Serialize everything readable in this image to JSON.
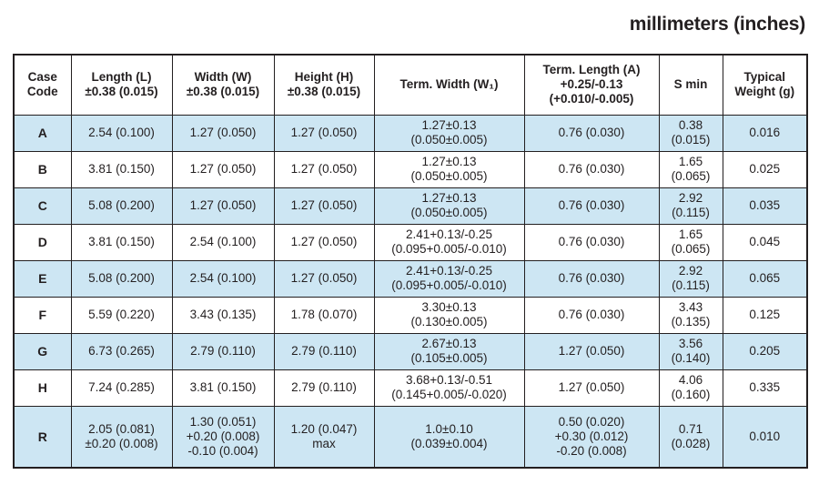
{
  "title": "millimeters (inches)",
  "colors": {
    "shaded_row": "#cde6f3",
    "border": "#231f20",
    "text": "#231f20",
    "background": "#ffffff"
  },
  "table": {
    "headers": [
      {
        "lines": [
          "Case",
          "Code"
        ]
      },
      {
        "lines": [
          "Length (L)",
          "±0.38 (0.015)"
        ]
      },
      {
        "lines": [
          "Width (W)",
          "±0.38 (0.015)"
        ]
      },
      {
        "lines": [
          "Height (H)",
          "±0.38 (0.015)"
        ]
      },
      {
        "lines": [
          "Term. Width (W₁)"
        ]
      },
      {
        "lines": [
          "Term. Length (A)",
          "+0.25/-0.13",
          "(+0.010/-0.005)"
        ]
      },
      {
        "lines": [
          "S min"
        ]
      },
      {
        "lines": [
          "Typical",
          "Weight (g)"
        ]
      }
    ],
    "rows": [
      {
        "case": "A",
        "shaded": true,
        "tall": false,
        "cells": [
          [
            "2.54 (0.100)"
          ],
          [
            "1.27 (0.050)"
          ],
          [
            "1.27 (0.050)"
          ],
          [
            "1.27±0.13",
            "(0.050±0.005)"
          ],
          [
            "0.76 (0.030)"
          ],
          [
            "0.38",
            "(0.015)"
          ],
          [
            "0.016"
          ]
        ]
      },
      {
        "case": "B",
        "shaded": false,
        "tall": false,
        "cells": [
          [
            "3.81 (0.150)"
          ],
          [
            "1.27 (0.050)"
          ],
          [
            "1.27 (0.050)"
          ],
          [
            "1.27±0.13",
            "(0.050±0.005)"
          ],
          [
            "0.76 (0.030)"
          ],
          [
            "1.65",
            "(0.065)"
          ],
          [
            "0.025"
          ]
        ]
      },
      {
        "case": "C",
        "shaded": true,
        "tall": false,
        "cells": [
          [
            "5.08 (0.200)"
          ],
          [
            "1.27 (0.050)"
          ],
          [
            "1.27 (0.050)"
          ],
          [
            "1.27±0.13",
            "(0.050±0.005)"
          ],
          [
            "0.76 (0.030)"
          ],
          [
            "2.92",
            "(0.115)"
          ],
          [
            "0.035"
          ]
        ]
      },
      {
        "case": "D",
        "shaded": false,
        "tall": false,
        "cells": [
          [
            "3.81 (0.150)"
          ],
          [
            "2.54 (0.100)"
          ],
          [
            "1.27 (0.050)"
          ],
          [
            "2.41+0.13/-0.25",
            "(0.095+0.005/-0.010)"
          ],
          [
            "0.76 (0.030)"
          ],
          [
            "1.65",
            "(0.065)"
          ],
          [
            "0.045"
          ]
        ]
      },
      {
        "case": "E",
        "shaded": true,
        "tall": false,
        "cells": [
          [
            "5.08 (0.200)"
          ],
          [
            "2.54 (0.100)"
          ],
          [
            "1.27 (0.050)"
          ],
          [
            "2.41+0.13/-0.25",
            "(0.095+0.005/-0.010)"
          ],
          [
            "0.76 (0.030)"
          ],
          [
            "2.92",
            "(0.115)"
          ],
          [
            "0.065"
          ]
        ]
      },
      {
        "case": "F",
        "shaded": false,
        "tall": false,
        "cells": [
          [
            "5.59 (0.220)"
          ],
          [
            "3.43 (0.135)"
          ],
          [
            "1.78 (0.070)"
          ],
          [
            "3.30±0.13",
            "(0.130±0.005)"
          ],
          [
            "0.76 (0.030)"
          ],
          [
            "3.43",
            "(0.135)"
          ],
          [
            "0.125"
          ]
        ]
      },
      {
        "case": "G",
        "shaded": true,
        "tall": false,
        "cells": [
          [
            "6.73 (0.265)"
          ],
          [
            "2.79 (0.110)"
          ],
          [
            "2.79 (0.110)"
          ],
          [
            "2.67±0.13",
            "(0.105±0.005)"
          ],
          [
            "1.27 (0.050)"
          ],
          [
            "3.56",
            "(0.140)"
          ],
          [
            "0.205"
          ]
        ]
      },
      {
        "case": "H",
        "shaded": false,
        "tall": false,
        "cells": [
          [
            "7.24 (0.285)"
          ],
          [
            "3.81 (0.150)"
          ],
          [
            "2.79 (0.110)"
          ],
          [
            "3.68+0.13/-0.51",
            "(0.145+0.005/-0.020)"
          ],
          [
            "1.27 (0.050)"
          ],
          [
            "4.06",
            "(0.160)"
          ],
          [
            "0.335"
          ]
        ]
      },
      {
        "case": "R",
        "shaded": true,
        "tall": true,
        "cells": [
          [
            "2.05 (0.081)",
            "±0.20 (0.008)"
          ],
          [
            "1.30 (0.051)",
            "+0.20 (0.008)",
            "-0.10 (0.004)"
          ],
          [
            "1.20 (0.047)",
            "max"
          ],
          [
            "1.0±0.10",
            "(0.039±0.004)"
          ],
          [
            "0.50 (0.020)",
            "+0.30 (0.012)",
            "-0.20 (0.008)"
          ],
          [
            "0.71",
            "(0.028)"
          ],
          [
            "0.010"
          ]
        ]
      }
    ]
  }
}
